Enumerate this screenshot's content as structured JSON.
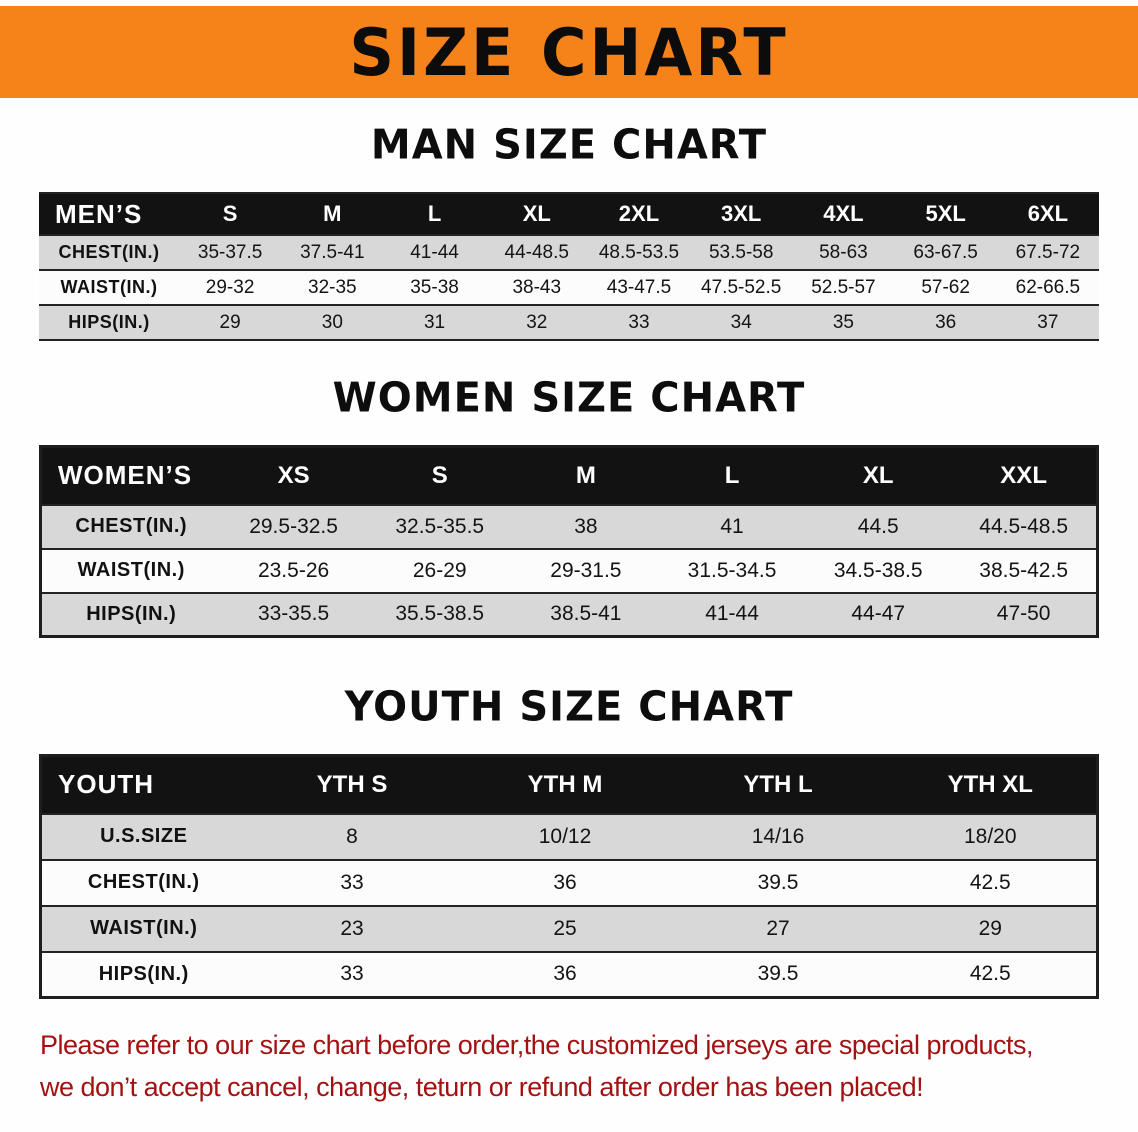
{
  "banner": {
    "title": "SIZE CHART"
  },
  "sections": [
    {
      "id": "men",
      "title": "MAN SIZE CHART",
      "header": [
        "MEN’S",
        "S",
        "M",
        "L",
        "XL",
        "2XL",
        "3XL",
        "4XL",
        "5XL",
        "6XL"
      ],
      "rows": [
        {
          "label": "CHEST(IN.)",
          "values": [
            "35-37.5",
            "37.5-41",
            "41-44",
            "44-48.5",
            "48.5-53.5",
            "53.5-58",
            "58-63",
            "63-67.5",
            "67.5-72"
          ]
        },
        {
          "label": "WAIST(IN.)",
          "values": [
            "29-32",
            "32-35",
            "35-38",
            "38-43",
            "43-47.5",
            "47.5-52.5",
            "52.5-57",
            "57-62",
            "62-66.5"
          ]
        },
        {
          "label": "HIPS(IN.)",
          "values": [
            "29",
            "30",
            "31",
            "32",
            "33",
            "34",
            "35",
            "36",
            "37"
          ]
        }
      ]
    },
    {
      "id": "women",
      "title": "WOMEN SIZE CHART",
      "header": [
        "WOMEN’S",
        "XS",
        "S",
        "M",
        "L",
        "XL",
        "XXL"
      ],
      "rows": [
        {
          "label": "CHEST(IN.)",
          "values": [
            "29.5-32.5",
            "32.5-35.5",
            "38",
            "41",
            "44.5",
            "44.5-48.5"
          ]
        },
        {
          "label": "WAIST(IN.)",
          "values": [
            "23.5-26",
            "26-29",
            "29-31.5",
            "31.5-34.5",
            "34.5-38.5",
            "38.5-42.5"
          ]
        },
        {
          "label": "HIPS(IN.)",
          "values": [
            "33-35.5",
            "35.5-38.5",
            "38.5-41",
            "41-44",
            "44-47",
            "47-50"
          ]
        }
      ]
    },
    {
      "id": "youth",
      "title": "YOUTH SIZE CHART",
      "header": [
        "YOUTH",
        "YTH S",
        "YTH M",
        "YTH L",
        "YTH XL"
      ],
      "rows": [
        {
          "label": "U.S.SIZE",
          "values": [
            "8",
            "10/12",
            "14/16",
            "18/20"
          ]
        },
        {
          "label": "CHEST(IN.)",
          "values": [
            "33",
            "36",
            "39.5",
            "42.5"
          ]
        },
        {
          "label": "WAIST(IN.)",
          "values": [
            "23",
            "25",
            "27",
            "29"
          ]
        },
        {
          "label": "HIPS(IN.)",
          "values": [
            "33",
            "36",
            "39.5",
            "42.5"
          ]
        }
      ]
    }
  ],
  "footer": {
    "line1": "Please refer to our size chart before order,the customized jerseys are special products,",
    "line2": "we don’t accept cancel, change, teturn or refund after order has been placed!"
  },
  "colors": {
    "banner_bg": "#f6821a",
    "table_header_bg": "#121212",
    "row_gray": "#d8d8d8",
    "footer_red": "#a31212"
  }
}
